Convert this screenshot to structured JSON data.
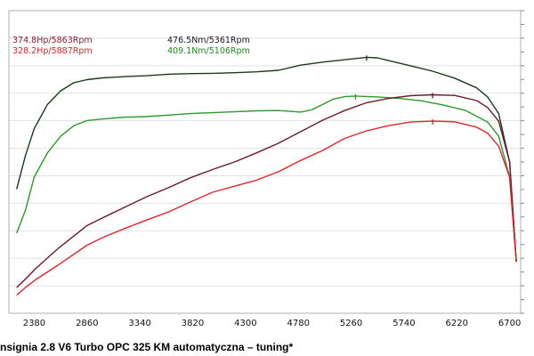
{
  "caption": "nsignia 2.8 V6 Turbo OPC 325 KM  automatyczna – tuning*",
  "chart_data": {
    "type": "line",
    "title": "",
    "xlabel": "",
    "ylabel": "",
    "xlim": [
      2150,
      6800
    ],
    "ylim": [
      0,
      100
    ],
    "grid": "horizontal",
    "xticks": [
      2380,
      2860,
      3340,
      3820,
      4300,
      4780,
      5260,
      5740,
      6220,
      6700
    ],
    "annotations": [
      {
        "text": "374.8Hp/5863Rpm",
        "color": "#8b1a2e"
      },
      {
        "text": "328.2Hp/5887Rpm",
        "color": "#e0262b"
      },
      {
        "text": "476.5Nm/5361Rpm",
        "color": "#1a1a1a"
      },
      {
        "text": "409.1Nm/5106Rpm",
        "color": "#1f8a1f"
      }
    ],
    "series": [
      {
        "color": "#1c3b1c",
        "x": [
          2220,
          2300,
          2380,
          2500,
          2620,
          2740,
          2860,
          3000,
          3200,
          3400,
          3600,
          3800,
          4000,
          4200,
          4400,
          4600,
          4800,
          5000,
          5200,
          5400,
          5500,
          5600,
          5800,
          6000,
          6200,
          6400,
          6500,
          6600,
          6700,
          6760
        ],
        "y": [
          41,
          52,
          61,
          69,
          73.5,
          76.2,
          77.2,
          77.8,
          78.2,
          78.5,
          79,
          79.2,
          79.3,
          79.5,
          79.8,
          80.3,
          82,
          83,
          83.8,
          84.6,
          84.4,
          83.5,
          81.8,
          80,
          77.7,
          74.5,
          71.5,
          66,
          50,
          17
        ]
      },
      {
        "color": "#2a9a2a",
        "x": [
          2220,
          2300,
          2380,
          2500,
          2620,
          2740,
          2860,
          3000,
          3200,
          3400,
          3600,
          3800,
          4000,
          4200,
          4400,
          4600,
          4800,
          4900,
          5000,
          5100,
          5200,
          5300,
          5500,
          5700,
          5900,
          6100,
          6300,
          6500,
          6600,
          6700,
          6760
        ],
        "y": [
          26.5,
          34,
          45,
          53,
          58.5,
          62,
          63.7,
          64.2,
          64.8,
          65,
          65.5,
          66,
          66.3,
          66.6,
          66.9,
          67,
          66.5,
          67.2,
          69,
          70.8,
          71.6,
          71.8,
          71.5,
          71,
          70.2,
          68.8,
          67,
          63.2,
          58.5,
          45,
          17
        ]
      },
      {
        "color": "#6b1a2e",
        "x": [
          2220,
          2300,
          2400,
          2600,
          2860,
          3000,
          3200,
          3400,
          3600,
          3800,
          4000,
          4200,
          4400,
          4600,
          4800,
          5000,
          5200,
          5400,
          5600,
          5800,
          6000,
          6200,
          6400,
          6500,
          6600,
          6700,
          6760
        ],
        "y": [
          8.5,
          11.3,
          15,
          21.5,
          29,
          31.5,
          35,
          38.5,
          41.5,
          44.8,
          47.5,
          50,
          53,
          56.2,
          60,
          63.8,
          67,
          69.6,
          71,
          71.9,
          72.2,
          72,
          70.3,
          68,
          63.5,
          50,
          17
        ]
      },
      {
        "color": "#e0262b",
        "x": [
          2220,
          2300,
          2400,
          2600,
          2860,
          3000,
          3200,
          3400,
          3600,
          3800,
          4000,
          4200,
          4400,
          4600,
          4800,
          5000,
          5200,
          5400,
          5600,
          5800,
          6000,
          6200,
          6400,
          6500,
          6600,
          6700,
          6760
        ],
        "y": [
          6,
          8.5,
          11.3,
          16,
          22.5,
          25,
          28,
          30.8,
          33.5,
          36.8,
          40,
          42,
          44,
          46.8,
          50.5,
          53.8,
          57.8,
          60.3,
          62,
          63.2,
          63.5,
          63.3,
          61.5,
          59.5,
          55.2,
          45,
          17
        ]
      }
    ]
  }
}
